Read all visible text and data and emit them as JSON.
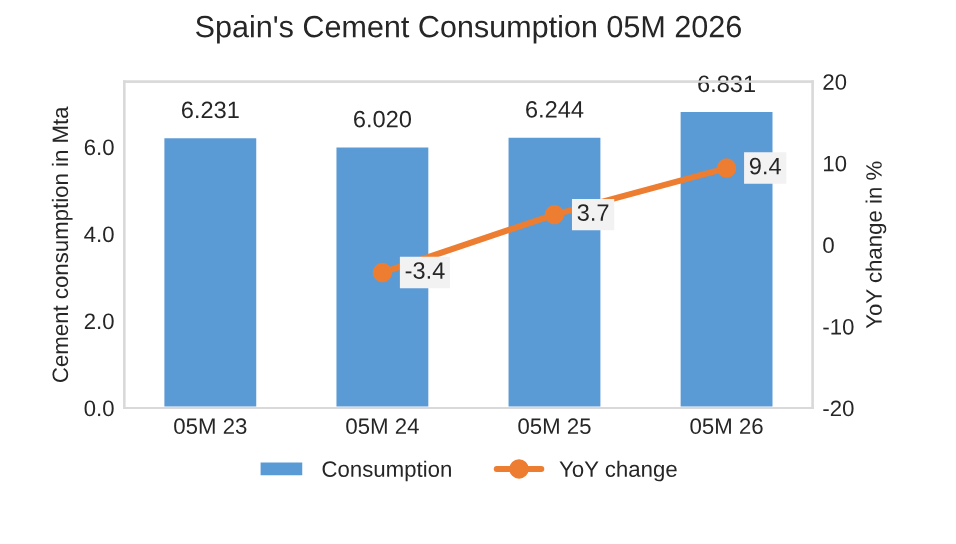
{
  "chart_data": {
    "type": "bar",
    "title": "Spain's Cement Consumption 05M 2026",
    "categories": [
      "05M 23",
      "05M 24",
      "05M 25",
      "05M 26"
    ],
    "series": [
      {
        "name": "Consumption",
        "color": "#5b9bd5",
        "values": [
          6.231,
          6.02,
          6.244,
          6.831
        ],
        "value_labels": [
          "6.231",
          "6.020",
          "6.244",
          "6.831"
        ]
      },
      {
        "name": "YoY change",
        "type": "line",
        "axis": "y2",
        "color": "#ed7d31",
        "marker": "circle",
        "values": [
          null,
          -3.4,
          3.7,
          9.4
        ],
        "value_labels": [
          null,
          "-3.4",
          "3.7",
          "9.4"
        ]
      }
    ],
    "ylabel": "Cement consumption in Mta",
    "y2label": "YoY change in %",
    "ylim": [
      0,
      7.5
    ],
    "yticks": [
      {
        "value": 0,
        "label": "0.0"
      },
      {
        "value": 2,
        "label": "2.0"
      },
      {
        "value": 4,
        "label": "4.0"
      },
      {
        "value": 6,
        "label": "6.0"
      }
    ],
    "y2lim": [
      -20,
      20
    ],
    "y2ticks": [
      -20,
      -10,
      0,
      10,
      20
    ],
    "grid": false,
    "legend": "bottom"
  }
}
